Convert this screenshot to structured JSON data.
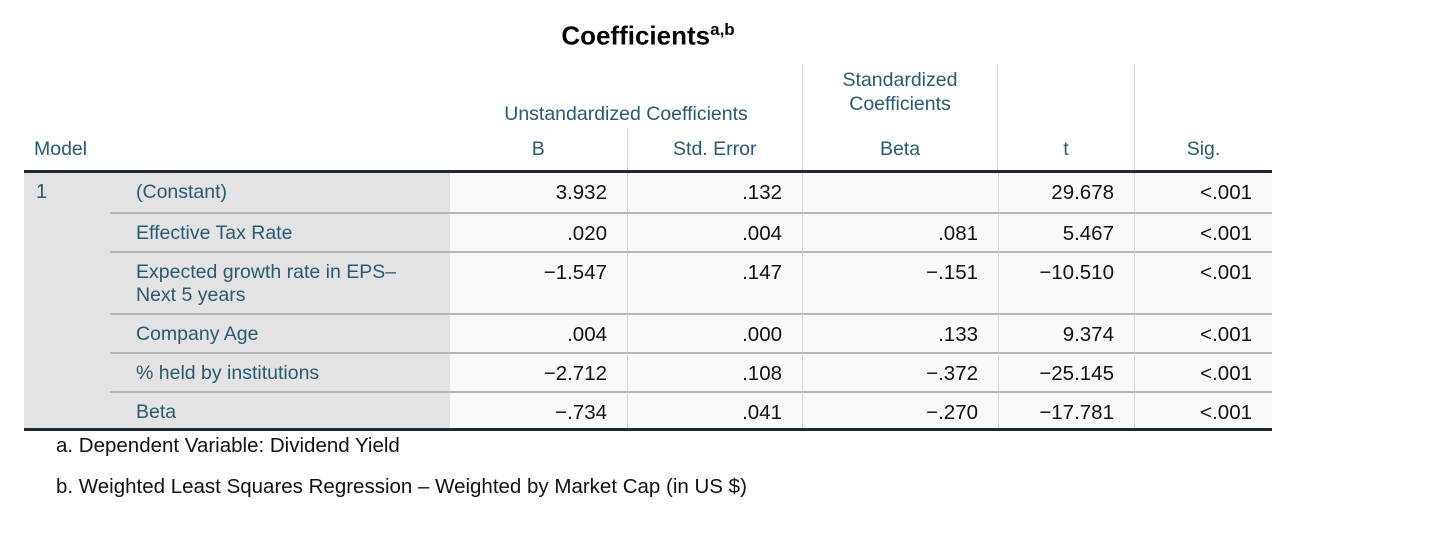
{
  "title": {
    "text": "Coefficients",
    "superscript": "a,b"
  },
  "table": {
    "model_header": "Model",
    "model_number": "1",
    "groups": {
      "unstandardized": "Unstandardized Coefficients",
      "standardized": "Standardized Coefficients"
    },
    "columns": [
      "B",
      "Std. Error",
      "Beta",
      "t",
      "Sig."
    ],
    "rows": [
      {
        "label": "(Constant)",
        "b": "3.932",
        "std_error": ".132",
        "beta": "",
        "t": "29.678",
        "sig": "<.001"
      },
      {
        "label": "Effective Tax Rate",
        "b": ".020",
        "std_error": ".004",
        "beta": ".081",
        "t": "5.467",
        "sig": "<.001"
      },
      {
        "label": "Expected growth rate in EPS– Next 5 years",
        "b": "−1.547",
        "std_error": ".147",
        "beta": "−.151",
        "t": "−10.510",
        "sig": "<.001"
      },
      {
        "label": "Company Age",
        "b": ".004",
        "std_error": ".000",
        "beta": ".133",
        "t": "9.374",
        "sig": "<.001"
      },
      {
        "label": "% held by institutions",
        "b": "−2.712",
        "std_error": ".108",
        "beta": "−.372",
        "t": "−25.145",
        "sig": "<.001"
      },
      {
        "label": "Beta",
        "b": "−.734",
        "std_error": ".041",
        "beta": "−.270",
        "t": "−17.781",
        "sig": "<.001"
      }
    ]
  },
  "footnotes": [
    "a. Dependent Variable: Dividend Yield",
    "b. Weighted Least Squares Regression – Weighted by Market Cap (in US $)"
  ],
  "colors": {
    "header_text": "#275b74",
    "value_text": "#111111",
    "label_bg": "#e3e3e4",
    "cell_bg": "#f9f9fb",
    "strong_border": "#1b2a36",
    "row_separator": "#b6b6b8",
    "column_separator": "#d6d6d8"
  }
}
